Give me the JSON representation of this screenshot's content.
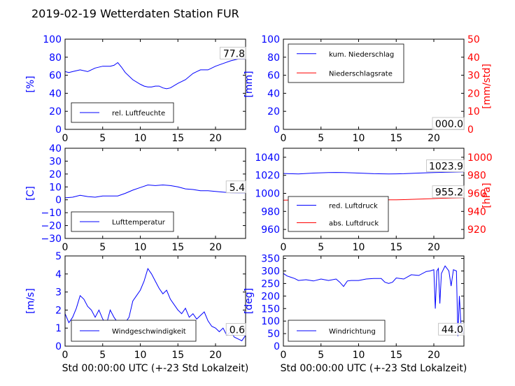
{
  "title": "2019-02-19 Wetterdaten Station FUR\u0003",
  "colors": {
    "primary": "#0000ff",
    "secondary": "#ff0000",
    "axis": "#000000"
  },
  "chart_data": [
    {
      "id": "humidity",
      "type": "line",
      "xlabel": "",
      "ylabel": "[%]",
      "xlim": [
        0,
        24
      ],
      "ylim": [
        0,
        100
      ],
      "xticks": [
        "0",
        "5",
        "10",
        "15",
        "20"
      ],
      "yticks": [
        "0",
        "20",
        "40",
        "60",
        "80",
        "100"
      ],
      "current_value": "77.8",
      "legend": {
        "placement": "lower-left",
        "entries": [
          "rel. Luftfeuchte"
        ]
      },
      "series": [
        {
          "name": "rel. Luftfeuchte",
          "color": "#0000ff",
          "x": [
            0,
            0.5,
            1,
            2,
            3,
            4,
            5,
            6,
            6.5,
            7,
            7.5,
            8,
            9,
            10,
            10.5,
            11,
            11.5,
            12,
            12.5,
            13,
            13.5,
            14,
            15,
            16,
            17,
            17.5,
            18,
            19,
            20,
            21,
            22,
            23,
            24
          ],
          "y": [
            64,
            63,
            64,
            66,
            64,
            68,
            70,
            70,
            71,
            74,
            69,
            63,
            55,
            50,
            48,
            47,
            47,
            48,
            48,
            46,
            45,
            46,
            51,
            55,
            62,
            64,
            66,
            66,
            70,
            73,
            76,
            78,
            78
          ]
        }
      ]
    },
    {
      "id": "precipitation",
      "type": "line",
      "xlabel": "",
      "ylabel": "[mm]",
      "ylabel_right": "[mm/std]",
      "xlim": [
        0,
        24
      ],
      "ylim": [
        0,
        100
      ],
      "ylim_right": [
        0,
        50
      ],
      "xticks": [
        "0",
        "5",
        "10",
        "15",
        "20"
      ],
      "yticks": [
        "0",
        "20",
        "40",
        "60",
        "80",
        "100"
      ],
      "yticks_right": [
        "0",
        "10",
        "20",
        "30",
        "40",
        "50"
      ],
      "current_value": "000.0",
      "legend": {
        "placement": "upper-left",
        "entries": [
          "kum. Niederschlag",
          "Niederschlagsrate"
        ]
      },
      "series": [
        {
          "name": "kum. Niederschlag",
          "color": "#0000ff",
          "x": [
            0,
            24
          ],
          "y": [
            0,
            0
          ]
        },
        {
          "name": "Niederschlagsrate",
          "color": "#ff0000",
          "x": [
            0,
            24
          ],
          "y": [
            0,
            0
          ]
        }
      ]
    },
    {
      "id": "temperature",
      "type": "line",
      "xlabel": "",
      "ylabel": "[C]",
      "xlim": [
        0,
        24
      ],
      "ylim": [
        -30,
        40
      ],
      "xticks": [
        "0",
        "5",
        "10",
        "15",
        "20"
      ],
      "yticks": [
        "−30",
        "−20",
        "−10",
        "0",
        "10",
        "20",
        "30",
        "40"
      ],
      "current_value": "5.4",
      "legend": {
        "placement": "lower-left",
        "entries": [
          "Lufttemperatur"
        ]
      },
      "series": [
        {
          "name": "Lufttemperatur",
          "color": "#0000ff",
          "x": [
            0,
            1,
            2,
            3,
            4,
            5,
            6,
            7,
            8,
            9,
            10,
            11,
            12,
            13,
            14,
            15,
            16,
            17,
            18,
            19,
            20,
            21,
            22,
            23,
            24
          ],
          "y": [
            1.5,
            2,
            3.5,
            2.5,
            2,
            3,
            3,
            3,
            5,
            7.5,
            9.5,
            11.5,
            11,
            11.5,
            11,
            10,
            8.5,
            8,
            7,
            7,
            6.5,
            6,
            5.5,
            5.4,
            5.4
          ]
        }
      ]
    },
    {
      "id": "pressure",
      "type": "line",
      "xlabel": "",
      "ylabel": "",
      "ylabel_right": "[hPa]",
      "xlim": [
        0,
        24
      ],
      "ylim": [
        950,
        1050
      ],
      "ylim_right": [
        910,
        1010
      ],
      "xticks": [
        "0",
        "5",
        "10",
        "15",
        "20"
      ],
      "yticks": [
        "960",
        "980",
        "1000",
        "1020",
        "1040"
      ],
      "yticks_right": [
        "920",
        "940",
        "960",
        "980",
        "1000"
      ],
      "current_value": "1023.9",
      "current_value_2": "955.2",
      "legend": {
        "placement": "lower-left",
        "entries": [
          "red. Luftdruck",
          "abs. Luftdruck"
        ]
      },
      "series": [
        {
          "name": "red. Luftdruck",
          "color": "#0000ff",
          "x": [
            0,
            2,
            4,
            6,
            7,
            8,
            10,
            12,
            14,
            15,
            16,
            18,
            20,
            22,
            24
          ],
          "y": [
            1022,
            1021.5,
            1022.5,
            1023,
            1023.2,
            1023,
            1022.5,
            1021.8,
            1021.5,
            1021.6,
            1021.8,
            1022.5,
            1023,
            1023.5,
            1023.9
          ]
        }
      ],
      "series_right": [
        {
          "name": "abs. Luftdruck",
          "color": "#ff0000",
          "x": [
            0,
            2,
            4,
            6,
            7,
            8,
            10,
            12,
            14,
            15,
            16,
            18,
            20,
            22,
            24
          ],
          "y": [
            952.5,
            952.7,
            953.2,
            953.6,
            953.8,
            953.7,
            953.5,
            953,
            952.8,
            952.9,
            953,
            953.6,
            954.2,
            954.8,
            955.2
          ]
        }
      ]
    },
    {
      "id": "windspeed",
      "type": "line",
      "xlabel": "Std 00:00:00 UTC (+-23 Std Lokalzeit)",
      "ylabel": "[m/s]",
      "xlim": [
        0,
        24
      ],
      "ylim": [
        0,
        5
      ],
      "xticks": [
        "0",
        "5",
        "10",
        "15",
        "20"
      ],
      "yticks": [
        "0",
        "1",
        "2",
        "3",
        "4",
        "5"
      ],
      "current_value": "0.6",
      "legend": {
        "placement": "lower-left",
        "entries": [
          "Windgeschwindigkeit"
        ]
      },
      "series": [
        {
          "name": "Windgeschwindigkeit",
          "color": "#0000ff",
          "x": [
            0,
            0.5,
            1,
            1.5,
            2,
            2.5,
            3,
            3.5,
            4,
            4.5,
            5,
            5.5,
            6,
            6.5,
            7,
            7.5,
            8,
            8.5,
            9,
            9.5,
            10,
            10.5,
            11,
            11.5,
            12,
            12.5,
            13,
            13.5,
            14,
            14.5,
            15,
            15.5,
            16,
            16.5,
            17,
            17.5,
            18,
            18.5,
            19,
            19.5,
            20,
            20.5,
            21,
            21.5,
            22,
            22.5,
            23,
            23.5,
            24
          ],
          "y": [
            1.8,
            1.3,
            1.6,
            2.1,
            2.8,
            2.6,
            2.2,
            2.0,
            1.6,
            2.0,
            1.5,
            1.2,
            2.0,
            1.6,
            1.3,
            0.9,
            1.3,
            1.6,
            2.5,
            2.8,
            3.1,
            3.6,
            4.3,
            4.0,
            3.6,
            3.2,
            2.9,
            3.1,
            2.6,
            2.3,
            2.0,
            1.8,
            2.1,
            1.6,
            1.8,
            1.5,
            1.7,
            1.9,
            1.4,
            1.1,
            1.0,
            0.8,
            1.0,
            0.6,
            0.8,
            0.5,
            0.4,
            0.3,
            0.6
          ]
        }
      ]
    },
    {
      "id": "winddirection",
      "type": "line",
      "xlabel": "Std 00:00:00 UTC (+-23 Std Lokalzeit)",
      "ylabel": "[deg]",
      "xlim": [
        0,
        24
      ],
      "ylim": [
        0,
        360
      ],
      "xticks": [
        "0",
        "5",
        "10",
        "15",
        "20"
      ],
      "yticks": [
        "0",
        "50",
        "100",
        "150",
        "200",
        "250",
        "300",
        "350"
      ],
      "current_value": "44.0",
      "legend": {
        "placement": "lower-left",
        "entries": [
          "Windrichtung"
        ]
      },
      "series": [
        {
          "name": "Windrichtung",
          "color": "#0000ff",
          "x": [
            0,
            0.5,
            1,
            1.5,
            2,
            3,
            4,
            5,
            6,
            7,
            7.5,
            8,
            8.5,
            9,
            10,
            11,
            12,
            13,
            13.5,
            14,
            14.5,
            15,
            16,
            17,
            18,
            19,
            19.5,
            20,
            20.2,
            20.4,
            20.6,
            20.8,
            21,
            21.5,
            22,
            22.3,
            22.6,
            23,
            23.2,
            23.4,
            23.6,
            24
          ],
          "y": [
            290,
            280,
            275,
            270,
            262,
            265,
            260,
            268,
            262,
            268,
            255,
            238,
            260,
            262,
            262,
            268,
            270,
            270,
            255,
            250,
            255,
            272,
            268,
            285,
            282,
            298,
            300,
            305,
            150,
            300,
            310,
            170,
            290,
            320,
            300,
            240,
            305,
            300,
            40,
            200,
            90,
            44
          ]
        }
      ]
    }
  ]
}
